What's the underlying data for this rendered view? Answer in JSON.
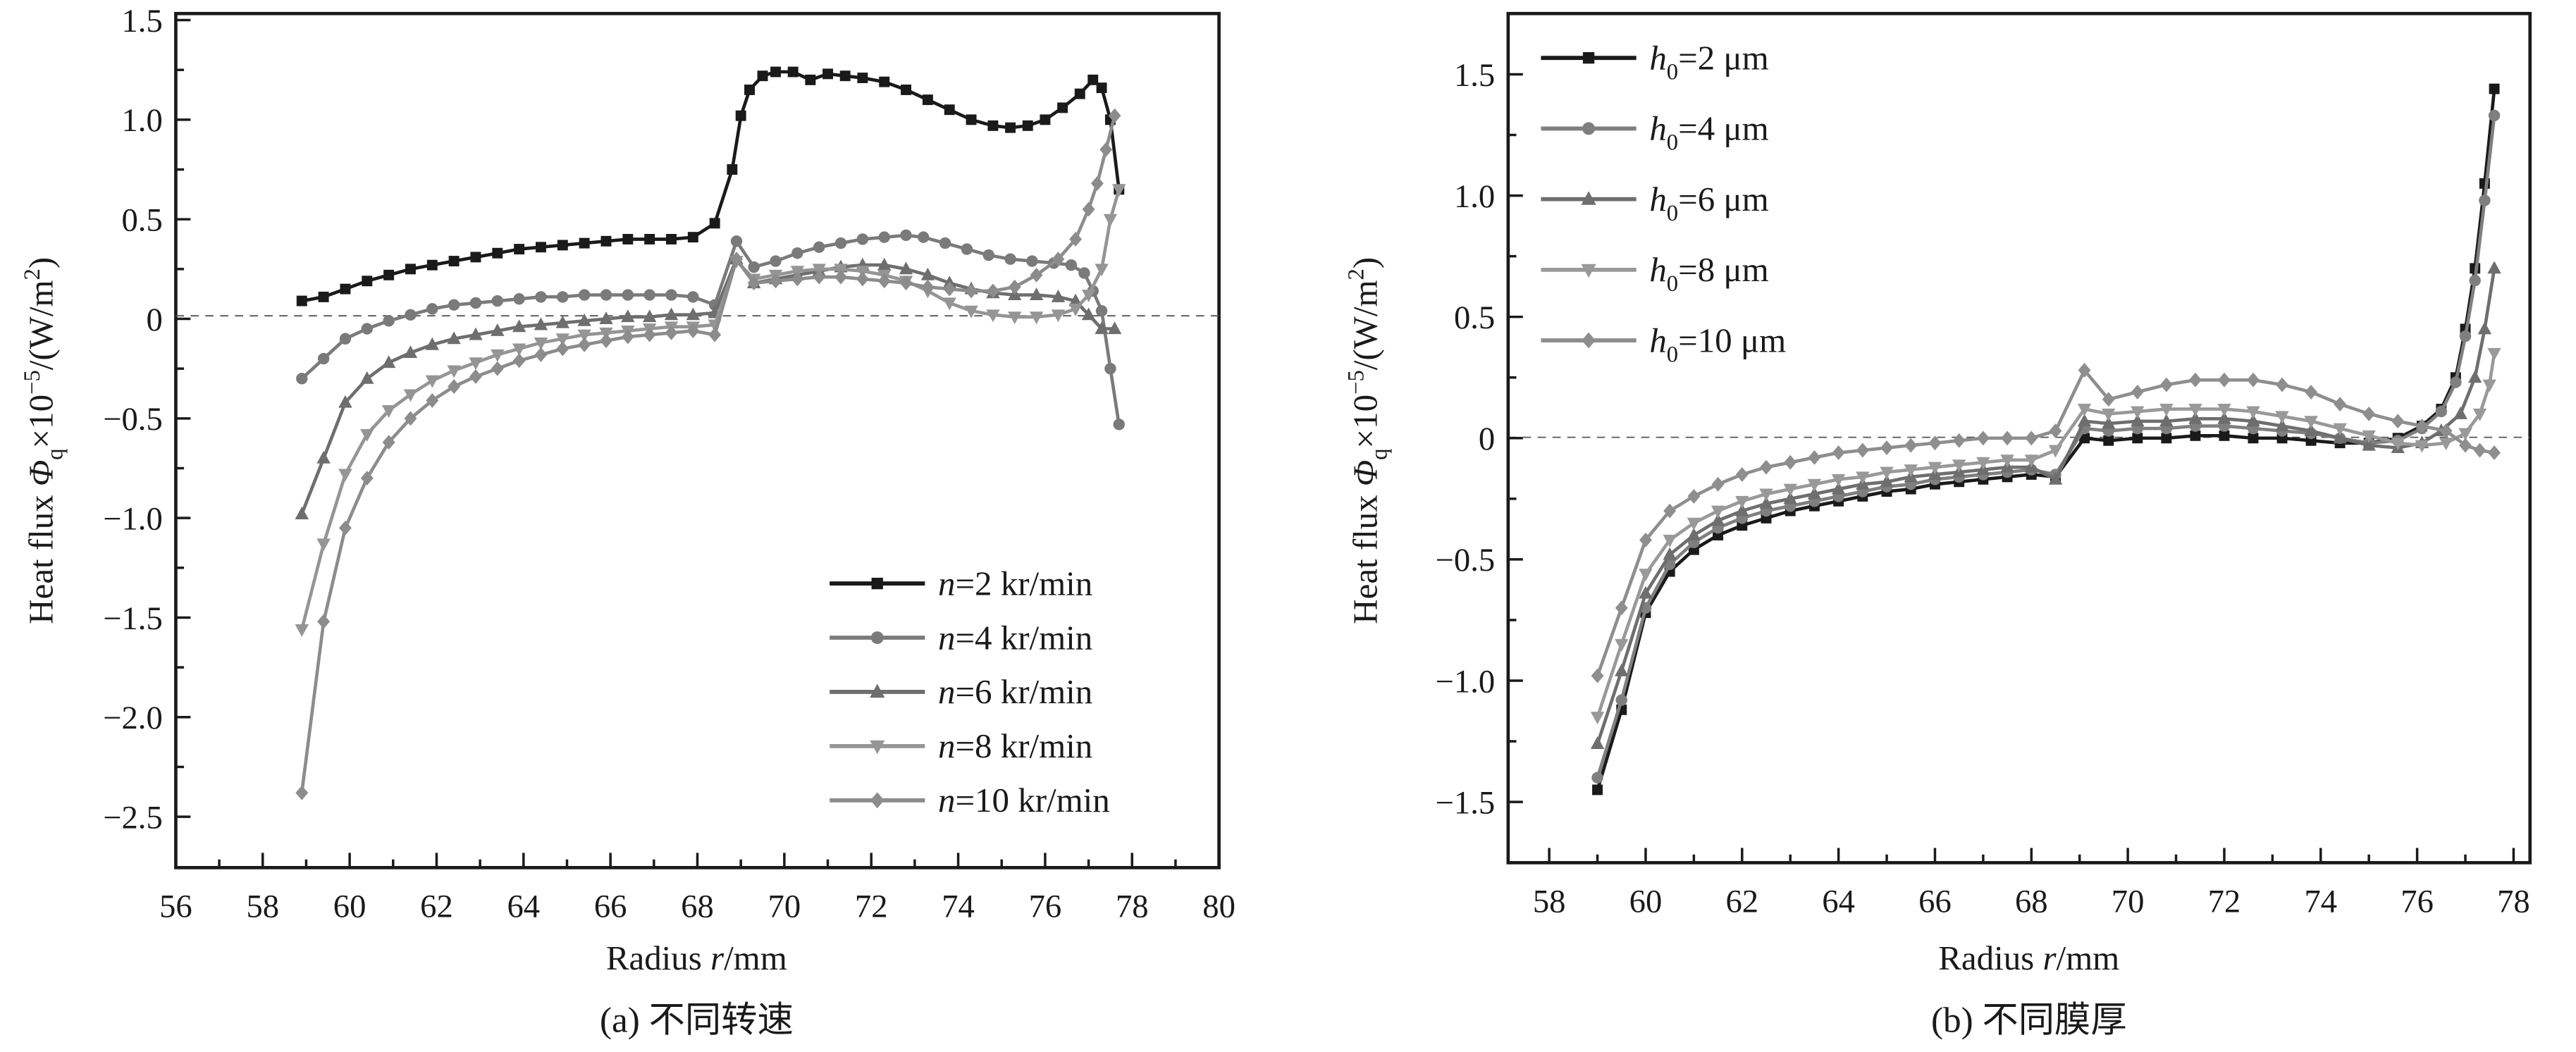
{
  "chart_data": [
    {
      "type": "line",
      "panel": "a",
      "caption": "(a) 不同转速",
      "xlabel": "Radius r/mm",
      "ylabel": "Heat flux Φq×10⁻⁵/(W/m²)",
      "xlim": [
        56,
        80
      ],
      "ylim": [
        -2.75,
        1.5
      ],
      "xticks": [
        "56",
        "58",
        "60",
        "62",
        "64",
        "66",
        "68",
        "70",
        "72",
        "74",
        "76",
        "78",
        "80"
      ],
      "yticks": [
        "1.5",
        "1.0",
        "0.5",
        "0",
        "−0.5",
        "−1.0",
        "−1.5",
        "−2.0",
        "−2.5"
      ],
      "ytick_values": [
        1.5,
        1.0,
        0.5,
        0,
        -0.5,
        -1.0,
        -1.5,
        -2.0,
        -2.5
      ],
      "xtick_values": [
        56,
        58,
        60,
        62,
        64,
        66,
        68,
        70,
        72,
        74,
        76,
        78,
        80
      ],
      "zero_line": "dashed",
      "legend_position": "bottom-right",
      "series": [
        {
          "name": "n=2 kr/min",
          "label_var": "n",
          "label_rest": "=2 kr/min",
          "color": "#1a1a1a",
          "marker": "square",
          "x": [
            58.9,
            59.4,
            59.9,
            60.4,
            60.9,
            61.4,
            61.9,
            62.4,
            62.9,
            63.4,
            63.9,
            64.4,
            64.9,
            65.4,
            65.9,
            66.4,
            66.9,
            67.4,
            67.9,
            68.4,
            68.8,
            69.0,
            69.2,
            69.5,
            69.8,
            70.2,
            70.6,
            71.0,
            71.4,
            71.8,
            72.3,
            72.8,
            73.3,
            73.8,
            74.3,
            74.8,
            75.2,
            75.6,
            76.0,
            76.4,
            76.8,
            77.1,
            77.3,
            77.5,
            77.7
          ],
          "y": [
            0.09,
            0.11,
            0.15,
            0.19,
            0.22,
            0.25,
            0.27,
            0.29,
            0.31,
            0.33,
            0.35,
            0.36,
            0.37,
            0.38,
            0.39,
            0.4,
            0.4,
            0.4,
            0.41,
            0.48,
            0.75,
            1.02,
            1.15,
            1.22,
            1.24,
            1.24,
            1.2,
            1.23,
            1.22,
            1.21,
            1.19,
            1.15,
            1.1,
            1.05,
            1.0,
            0.97,
            0.96,
            0.97,
            1.0,
            1.06,
            1.13,
            1.2,
            1.16,
            1.0,
            0.65
          ]
        },
        {
          "name": "n=4 kr/min",
          "label_var": "n",
          "label_rest": "=4 kr/min",
          "color": "#7a7a7a",
          "marker": "circle",
          "x": [
            58.9,
            59.4,
            59.9,
            60.4,
            60.9,
            61.4,
            61.9,
            62.4,
            62.9,
            63.4,
            63.9,
            64.4,
            64.9,
            65.4,
            65.9,
            66.4,
            66.9,
            67.4,
            67.9,
            68.4,
            68.9,
            69.3,
            69.8,
            70.3,
            70.8,
            71.3,
            71.8,
            72.3,
            72.8,
            73.2,
            73.7,
            74.2,
            74.7,
            75.2,
            75.7,
            76.2,
            76.6,
            76.9,
            77.1,
            77.3,
            77.5,
            77.7
          ],
          "y": [
            -0.3,
            -0.2,
            -0.1,
            -0.05,
            -0.01,
            0.02,
            0.05,
            0.07,
            0.08,
            0.09,
            0.1,
            0.11,
            0.11,
            0.12,
            0.12,
            0.12,
            0.12,
            0.12,
            0.11,
            0.07,
            0.39,
            0.26,
            0.29,
            0.33,
            0.36,
            0.38,
            0.4,
            0.41,
            0.42,
            0.41,
            0.38,
            0.35,
            0.32,
            0.3,
            0.29,
            0.28,
            0.27,
            0.23,
            0.14,
            0.04,
            -0.25,
            -0.53
          ]
        },
        {
          "name": "n=6 kr/min",
          "label_var": "n",
          "label_rest": "=6 kr/min",
          "color": "#6e6e6e",
          "marker": "triangle-up",
          "x": [
            58.9,
            59.4,
            59.9,
            60.4,
            60.9,
            61.4,
            61.9,
            62.4,
            62.9,
            63.4,
            63.9,
            64.4,
            64.9,
            65.4,
            65.9,
            66.4,
            66.9,
            67.4,
            67.9,
            68.4,
            68.9,
            69.3,
            69.8,
            70.3,
            70.8,
            71.3,
            71.8,
            72.3,
            72.8,
            73.3,
            73.8,
            74.3,
            74.8,
            75.3,
            75.8,
            76.3,
            76.7,
            77.0,
            77.3,
            77.6
          ],
          "y": [
            -0.98,
            -0.7,
            -0.42,
            -0.3,
            -0.22,
            -0.17,
            -0.13,
            -0.1,
            -0.08,
            -0.06,
            -0.04,
            -0.03,
            -0.02,
            -0.01,
            0.0,
            0.01,
            0.01,
            0.02,
            0.02,
            0.03,
            0.3,
            0.18,
            0.2,
            0.22,
            0.24,
            0.26,
            0.27,
            0.27,
            0.25,
            0.22,
            0.18,
            0.15,
            0.13,
            0.12,
            0.12,
            0.11,
            0.09,
            0.02,
            -0.05,
            -0.05
          ]
        },
        {
          "name": "n=8 kr/min",
          "label_var": "n",
          "label_rest": "=8 kr/min",
          "color": "#959595",
          "marker": "triangle-down",
          "x": [
            58.9,
            59.4,
            59.9,
            60.4,
            60.9,
            61.4,
            61.9,
            62.4,
            62.9,
            63.4,
            63.9,
            64.4,
            64.9,
            65.4,
            65.9,
            66.4,
            66.9,
            67.4,
            67.9,
            68.4,
            68.9,
            69.3,
            69.8,
            70.3,
            70.8,
            71.3,
            71.8,
            72.3,
            72.8,
            73.3,
            73.8,
            74.3,
            74.8,
            75.3,
            75.8,
            76.3,
            76.7,
            77.0,
            77.3,
            77.5,
            77.7
          ],
          "y": [
            -1.56,
            -1.13,
            -0.78,
            -0.58,
            -0.46,
            -0.38,
            -0.31,
            -0.26,
            -0.22,
            -0.18,
            -0.15,
            -0.12,
            -0.1,
            -0.08,
            -0.07,
            -0.06,
            -0.05,
            -0.04,
            -0.04,
            -0.03,
            0.29,
            0.2,
            0.22,
            0.24,
            0.25,
            0.25,
            0.24,
            0.22,
            0.19,
            0.14,
            0.08,
            0.04,
            0.02,
            0.01,
            0.01,
            0.02,
            0.05,
            0.12,
            0.25,
            0.5,
            0.65
          ]
        },
        {
          "name": "n=10 kr/min",
          "label_var": "n",
          "label_rest": "=10 kr/min",
          "color": "#8c8c8c",
          "marker": "diamond",
          "x": [
            58.9,
            59.4,
            59.9,
            60.4,
            60.9,
            61.4,
            61.9,
            62.4,
            62.9,
            63.4,
            63.9,
            64.4,
            64.9,
            65.4,
            65.9,
            66.4,
            66.9,
            67.4,
            67.9,
            68.4,
            68.9,
            69.3,
            69.8,
            70.3,
            70.8,
            71.3,
            71.8,
            72.3,
            72.8,
            73.3,
            73.8,
            74.3,
            74.8,
            75.3,
            75.8,
            76.3,
            76.7,
            77.0,
            77.2,
            77.4,
            77.6
          ],
          "y": [
            -2.38,
            -1.52,
            -1.05,
            -0.8,
            -0.62,
            -0.5,
            -0.41,
            -0.34,
            -0.29,
            -0.25,
            -0.21,
            -0.18,
            -0.15,
            -0.13,
            -0.11,
            -0.09,
            -0.08,
            -0.07,
            -0.06,
            -0.08,
            0.3,
            0.18,
            0.19,
            0.2,
            0.21,
            0.21,
            0.2,
            0.19,
            0.18,
            0.16,
            0.15,
            0.14,
            0.14,
            0.16,
            0.22,
            0.3,
            0.4,
            0.55,
            0.68,
            0.85,
            1.02
          ]
        }
      ]
    },
    {
      "type": "line",
      "panel": "b",
      "caption": "(b) 不同膜厚",
      "xlabel": "Radius r/mm",
      "ylabel": "Heat flux Φq×10⁻⁵/(W/m²)",
      "xlim": [
        57.5,
        78
      ],
      "ylim": [
        -1.75,
        1.75
      ],
      "xticks": [
        "58",
        "60",
        "62",
        "64",
        "66",
        "68",
        "70",
        "72",
        "74",
        "76",
        "78"
      ],
      "xtick_values": [
        58,
        60,
        62,
        64,
        66,
        68,
        70,
        72,
        74,
        76,
        78
      ],
      "yticks": [
        "1.5",
        "1.0",
        "0.5",
        "0",
        "−0.5",
        "−1.0",
        "−1.5"
      ],
      "ytick_values": [
        1.5,
        1.0,
        0.5,
        0,
        -0.5,
        -1.0,
        -1.5
      ],
      "zero_line": "dashed",
      "legend_position": "top-left",
      "series": [
        {
          "name": "h0=2 μm",
          "label_var": "h",
          "label_sub": "0",
          "label_rest": "=2 μm",
          "color": "#1a1a1a",
          "marker": "square",
          "x": [
            59.0,
            59.5,
            60.0,
            60.5,
            61.0,
            61.5,
            62.0,
            62.5,
            63.0,
            63.5,
            64.0,
            64.5,
            65.0,
            65.5,
            66.0,
            66.5,
            67.0,
            67.5,
            68.0,
            68.5,
            69.1,
            69.6,
            70.2,
            70.8,
            71.4,
            72.0,
            72.6,
            73.2,
            73.8,
            74.4,
            75.0,
            75.6,
            76.1,
            76.5,
            76.8,
            77.0,
            77.2,
            77.4,
            77.6
          ],
          "y": [
            -1.45,
            -1.12,
            -0.72,
            -0.55,
            -0.46,
            -0.4,
            -0.36,
            -0.33,
            -0.3,
            -0.28,
            -0.26,
            -0.24,
            -0.22,
            -0.21,
            -0.19,
            -0.18,
            -0.17,
            -0.16,
            -0.15,
            -0.16,
            0.0,
            -0.01,
            0.0,
            0.0,
            0.01,
            0.01,
            0.0,
            0.0,
            -0.01,
            -0.02,
            -0.02,
            0.0,
            0.05,
            0.12,
            0.25,
            0.45,
            0.7,
            1.05,
            1.44
          ]
        },
        {
          "name": "h0=4 μm",
          "label_var": "h",
          "label_sub": "0",
          "label_rest": "=4 μm",
          "color": "#7f7f7f",
          "marker": "circle",
          "x": [
            59.0,
            59.5,
            60.0,
            60.5,
            61.0,
            61.5,
            62.0,
            62.5,
            63.0,
            63.5,
            64.0,
            64.5,
            65.0,
            65.5,
            66.0,
            66.5,
            67.0,
            67.5,
            68.0,
            68.5,
            69.1,
            69.6,
            70.2,
            70.8,
            71.4,
            72.0,
            72.6,
            73.2,
            73.8,
            74.4,
            75.0,
            75.6,
            76.1,
            76.5,
            76.8,
            77.0,
            77.2,
            77.4,
            77.6
          ],
          "y": [
            -1.4,
            -1.08,
            -0.7,
            -0.52,
            -0.43,
            -0.37,
            -0.33,
            -0.3,
            -0.28,
            -0.26,
            -0.24,
            -0.22,
            -0.2,
            -0.19,
            -0.17,
            -0.16,
            -0.15,
            -0.14,
            -0.13,
            -0.15,
            0.04,
            0.03,
            0.04,
            0.04,
            0.05,
            0.05,
            0.04,
            0.03,
            0.02,
            0.0,
            -0.02,
            -0.01,
            0.04,
            0.11,
            0.23,
            0.42,
            0.65,
            0.98,
            1.33
          ]
        },
        {
          "name": "h0=6 μm",
          "label_var": "h",
          "label_sub": "0",
          "label_rest": "=6 μm",
          "color": "#6e6e6e",
          "marker": "triangle-up",
          "x": [
            59.0,
            59.5,
            60.0,
            60.5,
            61.0,
            61.5,
            62.0,
            62.5,
            63.0,
            63.5,
            64.0,
            64.5,
            65.0,
            65.5,
            66.0,
            66.5,
            67.0,
            67.5,
            68.0,
            68.5,
            69.1,
            69.6,
            70.2,
            70.8,
            71.4,
            72.0,
            72.6,
            73.2,
            73.8,
            74.4,
            75.0,
            75.6,
            76.1,
            76.5,
            76.9,
            77.2,
            77.4,
            77.6
          ],
          "y": [
            -1.26,
            -0.96,
            -0.64,
            -0.48,
            -0.4,
            -0.34,
            -0.3,
            -0.27,
            -0.25,
            -0.23,
            -0.21,
            -0.19,
            -0.18,
            -0.16,
            -0.15,
            -0.14,
            -0.13,
            -0.12,
            -0.12,
            -0.17,
            0.07,
            0.06,
            0.07,
            0.07,
            0.08,
            0.08,
            0.07,
            0.05,
            0.03,
            0.0,
            -0.03,
            -0.04,
            -0.02,
            0.03,
            0.1,
            0.25,
            0.45,
            0.7
          ]
        },
        {
          "name": "h0=8 μm",
          "label_var": "h",
          "label_sub": "0",
          "label_rest": "=8 μm",
          "color": "#999999",
          "marker": "triangle-down",
          "x": [
            59.0,
            59.5,
            60.0,
            60.5,
            61.0,
            61.5,
            62.0,
            62.5,
            63.0,
            63.5,
            64.0,
            64.5,
            65.0,
            65.5,
            66.0,
            66.5,
            67.0,
            67.5,
            68.0,
            68.5,
            69.1,
            69.6,
            70.2,
            70.8,
            71.4,
            72.0,
            72.6,
            73.2,
            73.8,
            74.4,
            75.0,
            75.6,
            76.1,
            76.6,
            77.0,
            77.3,
            77.5,
            77.6
          ],
          "y": [
            -1.15,
            -0.85,
            -0.56,
            -0.42,
            -0.35,
            -0.3,
            -0.26,
            -0.23,
            -0.21,
            -0.19,
            -0.17,
            -0.16,
            -0.14,
            -0.13,
            -0.12,
            -0.11,
            -0.1,
            -0.09,
            -0.09,
            -0.05,
            0.12,
            0.1,
            0.11,
            0.12,
            0.12,
            0.12,
            0.11,
            0.09,
            0.07,
            0.04,
            0.01,
            -0.02,
            -0.03,
            -0.02,
            0.02,
            0.1,
            0.22,
            0.35
          ]
        },
        {
          "name": "h0=10 μm",
          "label_var": "h",
          "label_sub": "0",
          "label_rest": "=10 μm",
          "color": "#8e8e8e",
          "marker": "diamond",
          "x": [
            59.0,
            59.5,
            60.0,
            60.5,
            61.0,
            61.5,
            62.0,
            62.5,
            63.0,
            63.5,
            64.0,
            64.5,
            65.0,
            65.5,
            66.0,
            66.5,
            67.0,
            67.5,
            68.0,
            68.5,
            69.1,
            69.6,
            70.2,
            70.8,
            71.4,
            72.0,
            72.6,
            73.2,
            73.8,
            74.4,
            75.0,
            75.6,
            76.1,
            76.6,
            77.0,
            77.3,
            77.6
          ],
          "y": [
            -0.98,
            -0.7,
            -0.42,
            -0.3,
            -0.24,
            -0.19,
            -0.15,
            -0.12,
            -0.1,
            -0.08,
            -0.06,
            -0.05,
            -0.04,
            -0.03,
            -0.02,
            -0.01,
            0.0,
            0.0,
            0.0,
            0.03,
            0.28,
            0.16,
            0.19,
            0.22,
            0.24,
            0.24,
            0.24,
            0.22,
            0.19,
            0.14,
            0.1,
            0.07,
            0.05,
            0.03,
            -0.03,
            -0.05,
            -0.06
          ]
        }
      ]
    }
  ]
}
